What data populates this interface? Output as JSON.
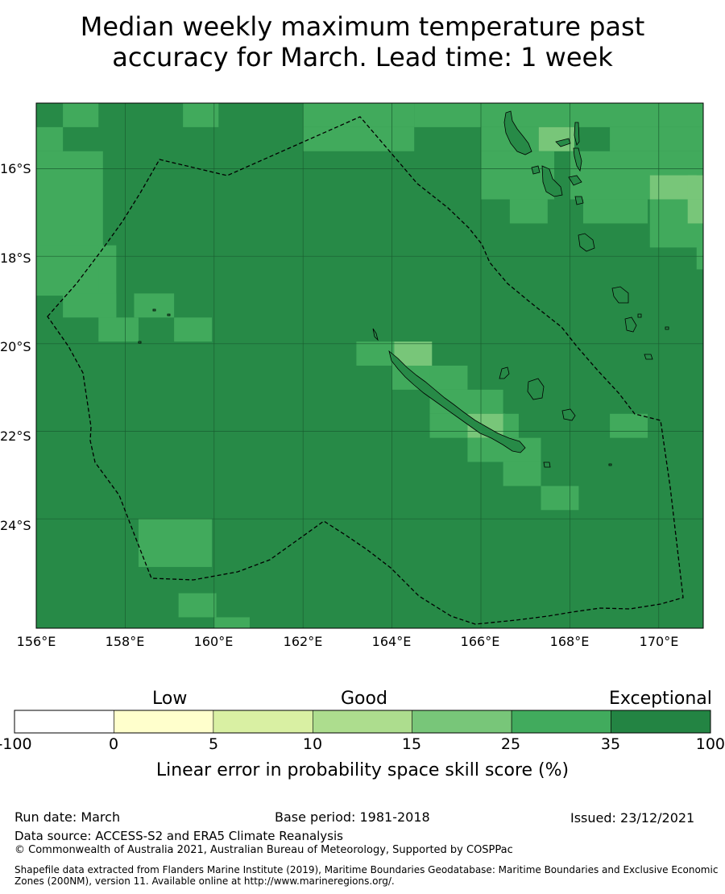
{
  "title": {
    "line1": "Median weekly maximum temperature past",
    "line2": "accuracy for March. Lead time: 1 week"
  },
  "map": {
    "lat_ticks": [
      "16°S",
      "18°S",
      "20°S",
      "22°S",
      "24°S"
    ],
    "lon_ticks": [
      "156°E",
      "158°E",
      "160°E",
      "162°E",
      "164°E",
      "166°E",
      "168°E",
      "170°E"
    ],
    "lat_range": [
      -26.5,
      -14.5
    ],
    "lon_range": [
      156,
      171
    ],
    "grid_cells_note_colors": {
      "exceptional": "#278a47",
      "good_high": "#41aa5c",
      "good_mid": "#78c679"
    }
  },
  "colorbar": {
    "categories": {
      "low": "Low",
      "good": "Good",
      "exceptional": "Exceptional"
    },
    "ticks": [
      "-100",
      "0",
      "5",
      "10",
      "15",
      "25",
      "35",
      "100"
    ],
    "colors": [
      "#ffffff",
      "#ffffcc",
      "#d9f0a3",
      "#addd8e",
      "#78c679",
      "#41ab5d",
      "#238443"
    ],
    "label": "Linear error in probability space skill score (%)"
  },
  "footer": {
    "run_date": "Run date: March",
    "base_period": "Base period: 1981-2018",
    "issued": "Issued: 23/12/2021",
    "data_source": "Data source: ACCESS-S2 and ERA5 Climate Reanalysis",
    "copyright": "© Commonwealth of Australia 2021, Australian Bureau of Meteorology, Supported by COSPPac",
    "shapefile_line1": "Shapefile data extracted from Flanders Marine Institute (2019), Maritime Boundaries Geodatabase: Maritime Boundaries and Exclusive Economic",
    "shapefile_line2": "Zones (200NM), version 11. Available online at http://www.marineregions.org/."
  }
}
